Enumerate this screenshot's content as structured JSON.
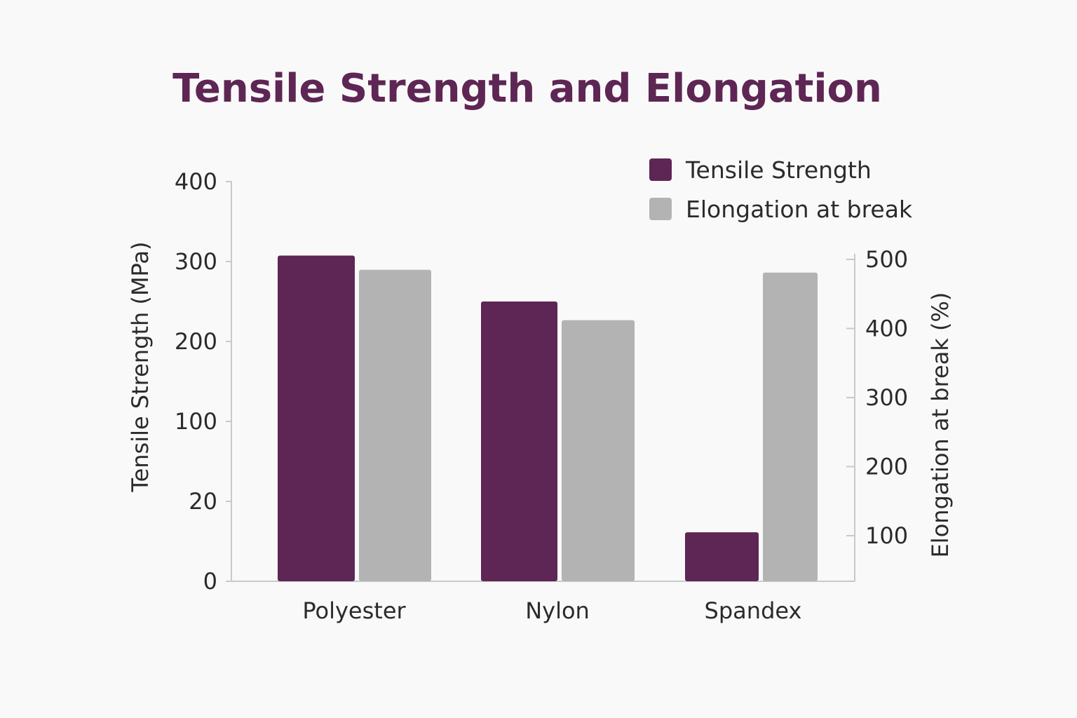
{
  "chart_data": {
    "type": "bar",
    "title": "Tensile Strength and Elongation",
    "categories": [
      "Polyester",
      "Nylon",
      "Spandex"
    ],
    "series": [
      {
        "name": "Tensile Strength",
        "axis": "left",
        "color": "#5e2654",
        "values": [
          326,
          280,
          49
        ]
      },
      {
        "name": "Elongation at break",
        "axis": "right",
        "color": "#b3b3b3",
        "values": [
          485,
          412,
          481
        ]
      }
    ],
    "left_axis": {
      "label": "Tensile Strength (MPa)",
      "tick_labels": [
        "0",
        "20",
        "100",
        "200",
        "300",
        "400"
      ],
      "ylim": [
        0,
        400
      ]
    },
    "right_axis": {
      "label": "Elongation at break (%)",
      "tick_labels": [
        "100",
        "200",
        "300",
        "400",
        "500"
      ],
      "ticks": [
        100,
        200,
        300,
        400,
        500
      ]
    },
    "legend": {
      "position": "top-right"
    },
    "grid": false
  }
}
